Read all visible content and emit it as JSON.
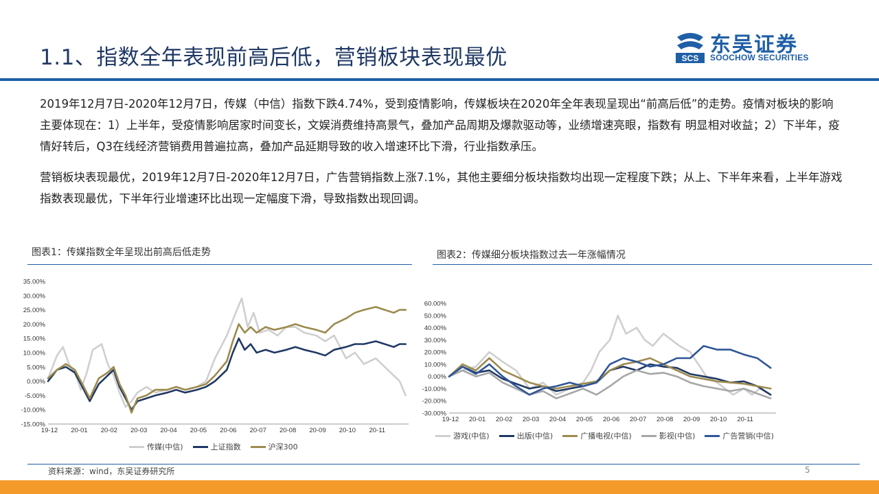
{
  "header": {
    "title": "1.1、指数全年表现前高后低，营销板块表现最优",
    "logo_cn": "东吴证券",
    "logo_en": "SOOCHOW SECURITIES",
    "logo_mark": "SCS",
    "logo_color": "#1f5fa6"
  },
  "paragraphs": [
    "2019年12月7日-2020年12月7日，传媒（中信）指数下跌4.74%，受到疫情影响，传媒板块在2020年全年表现呈现出“前高后低”的走势。疫情对板块的影响主要体现在：1）上半年，受疫情影响居家时间变长，文娱消费维持高景气，叠加产品周期及爆款驱动等，业绩增速亮眼，指数有 明显相对收益；2）下半年，疫情好转后，Q3在线经济营销费用普遍拉高，叠加产品延期导致的收入增速环比下滑，行业指数承压。",
    "营销板块表现最优，2019年12月7日-2020年12月7日，广告营销指数上涨7.1%，其他主要细分板块指数均出现一定程度下跌；从上、下半年来看，上半年游戏指数表现最优，下半年行业增速环比出现一定幅度下滑，导致指数出现回调。"
  ],
  "figures": {
    "fig1_title": "图表1：传媒指数全年呈现出前高后低走势",
    "fig2_title": "图表2：传媒细分板块指数过去一年涨幅情况"
  },
  "chart_data": [
    {
      "type": "line",
      "title": "",
      "xlabel": "",
      "ylabel": "",
      "x_ticks": [
        "19-12",
        "20-01",
        "20-02",
        "20-03",
        "20-04",
        "20-05",
        "20-06",
        "20-07",
        "20-08",
        "20-09",
        "20-10",
        "20-11"
      ],
      "y_ticks": [
        "35.00%",
        "30.00%",
        "25.00%",
        "20.00%",
        "15.00%",
        "10.00%",
        "5.00%",
        "0.00%",
        "-5.00%",
        "-10.00%",
        "-15.00%"
      ],
      "ylim": [
        -15,
        35
      ],
      "x_range": [
        0,
        12.1
      ],
      "grid": false,
      "legend_position": "bottom",
      "series": [
        {
          "name": "传媒(中信)",
          "color": "#cfcfcf",
          "x": [
            0,
            0.3,
            0.5,
            0.7,
            0.9,
            1.1,
            1.3,
            1.5,
            1.8,
            2.0,
            2.2,
            2.4,
            2.6,
            2.8,
            3.0,
            3.3,
            3.6,
            4.0,
            4.3,
            4.6,
            5.0,
            5.3,
            5.6,
            6.0,
            6.3,
            6.5,
            6.7,
            6.9,
            7.1,
            7.4,
            7.7,
            8.0,
            8.3,
            8.6,
            9.0,
            9.3,
            9.6,
            10.0,
            10.3,
            10.6,
            11.0,
            11.3,
            11.6,
            11.8,
            12.0
          ],
          "y": [
            1,
            9,
            12,
            6,
            3,
            -3,
            3,
            11,
            13,
            6,
            2,
            -4,
            -9,
            -7,
            -4,
            -2,
            -4,
            -3,
            -2,
            -3,
            -2,
            0,
            8,
            16,
            24,
            29,
            19,
            24,
            17,
            18,
            16,
            19,
            19,
            17,
            16,
            14,
            16,
            8,
            10,
            6,
            8,
            5,
            2,
            0,
            -5
          ]
        },
        {
          "name": "上证指数",
          "color": "#1f3864",
          "x": [
            0,
            0.3,
            0.6,
            0.9,
            1.2,
            1.4,
            1.7,
            2.0,
            2.2,
            2.4,
            2.6,
            2.8,
            3.0,
            3.3,
            3.6,
            4.0,
            4.3,
            4.6,
            5.0,
            5.3,
            5.6,
            6.0,
            6.2,
            6.4,
            6.6,
            6.8,
            7.0,
            7.3,
            7.6,
            8.0,
            8.3,
            8.6,
            9.0,
            9.3,
            9.6,
            10.0,
            10.3,
            10.6,
            11.0,
            11.3,
            11.6,
            11.8,
            12.0
          ],
          "y": [
            0,
            4,
            5,
            3,
            -3,
            -7,
            -1,
            2,
            4,
            -2,
            -6,
            -10,
            -7,
            -6,
            -5,
            -4,
            -3,
            -4,
            -3,
            -2,
            0,
            4,
            10,
            15,
            11,
            13,
            10,
            11,
            10,
            11,
            12,
            11,
            10,
            9,
            11,
            12,
            13,
            13,
            14,
            13,
            12,
            13,
            13
          ]
        },
        {
          "name": "沪深300",
          "color": "#9c8a4d",
          "x": [
            0,
            0.3,
            0.6,
            0.9,
            1.2,
            1.4,
            1.7,
            2.0,
            2.2,
            2.4,
            2.6,
            2.8,
            3.0,
            3.3,
            3.6,
            4.0,
            4.3,
            4.6,
            5.0,
            5.3,
            5.6,
            6.0,
            6.2,
            6.4,
            6.6,
            6.8,
            7.0,
            7.3,
            7.6,
            8.0,
            8.3,
            8.6,
            9.0,
            9.3,
            9.6,
            10.0,
            10.3,
            10.6,
            11.0,
            11.3,
            11.6,
            11.8,
            12.0
          ],
          "y": [
            1,
            4,
            6,
            4,
            -2,
            -6,
            1,
            3,
            5,
            -1,
            -5,
            -11,
            -6,
            -5,
            -3,
            -3,
            -2,
            -3,
            -2,
            -1,
            2,
            7,
            14,
            20,
            17,
            19,
            17,
            19,
            18,
            19,
            20,
            19,
            18,
            17,
            20,
            22,
            24,
            25,
            26,
            25,
            24,
            25,
            25
          ]
        }
      ]
    },
    {
      "type": "line",
      "title": "",
      "xlabel": "",
      "ylabel": "",
      "x_ticks": [
        "19-12",
        "20-01",
        "20-02",
        "20-03",
        "20-04",
        "20-05",
        "20-06",
        "20-07",
        "20-08",
        "20-09",
        "20-10",
        "20-11"
      ],
      "y_ticks": [
        "60.00%",
        "50.00%",
        "40.00%",
        "30.00%",
        "20.00%",
        "10.00%",
        "0.00%",
        "-10.00%",
        "-20.00%",
        "-30.00%"
      ],
      "ylim": [
        -30,
        60
      ],
      "x_range": [
        0,
        12.2
      ],
      "grid": false,
      "legend_position": "bottom",
      "series": [
        {
          "name": "游戏(中信)",
          "color": "#cfcfcf",
          "x": [
            0,
            0.5,
            1.0,
            1.5,
            2.0,
            2.5,
            3.0,
            3.5,
            4.0,
            4.5,
            5.0,
            5.3,
            5.6,
            6.0,
            6.3,
            6.6,
            7.0,
            7.3,
            7.6,
            8.0,
            8.3,
            8.6,
            9.0,
            9.3,
            9.6,
            10.0,
            10.3,
            10.6,
            11.0,
            11.3,
            11.6,
            12.0
          ],
          "y": [
            0,
            5,
            8,
            20,
            12,
            5,
            -10,
            -5,
            -15,
            -10,
            -5,
            5,
            20,
            30,
            50,
            35,
            40,
            30,
            25,
            35,
            30,
            25,
            20,
            10,
            0,
            -5,
            -10,
            -15,
            -10,
            -15,
            -10,
            -15
          ]
        },
        {
          "name": "出版(中信)",
          "color": "#1f3864",
          "x": [
            0,
            0.5,
            1.0,
            1.5,
            2.0,
            2.5,
            3.0,
            3.5,
            4.0,
            4.5,
            5.0,
            5.5,
            6.0,
            6.5,
            7.0,
            7.5,
            8.0,
            8.5,
            9.0,
            9.5,
            10.0,
            10.5,
            11.0,
            11.5,
            12.0
          ],
          "y": [
            0,
            8,
            3,
            5,
            -2,
            -6,
            -10,
            -8,
            -12,
            -10,
            -8,
            -5,
            5,
            8,
            5,
            10,
            8,
            7,
            2,
            0,
            -2,
            -5,
            -4,
            -8,
            -15
          ]
        },
        {
          "name": "广播电视(中信)",
          "color": "#9c8a4d",
          "x": [
            0,
            0.5,
            1.0,
            1.5,
            2.0,
            2.5,
            3.0,
            3.5,
            4.0,
            4.5,
            5.0,
            5.5,
            6.0,
            6.5,
            7.0,
            7.5,
            8.0,
            8.5,
            9.0,
            9.5,
            10.0,
            10.5,
            11.0,
            11.5,
            12.0
          ],
          "y": [
            0,
            10,
            5,
            15,
            5,
            0,
            -5,
            -8,
            -10,
            -8,
            -6,
            -4,
            5,
            10,
            12,
            15,
            10,
            5,
            0,
            -2,
            -4,
            -5,
            -6,
            -8,
            -10
          ]
        },
        {
          "name": "影视(中信)",
          "color": "#a6a6a6",
          "x": [
            0,
            0.5,
            1.0,
            1.5,
            2.0,
            2.5,
            3.0,
            3.5,
            4.0,
            4.5,
            5.0,
            5.5,
            6.0,
            6.5,
            7.0,
            7.5,
            8.0,
            8.5,
            9.0,
            9.5,
            10.0,
            10.5,
            11.0,
            11.5,
            12.0
          ],
          "y": [
            0,
            5,
            0,
            3,
            -5,
            -10,
            -15,
            -12,
            -18,
            -14,
            -10,
            -15,
            -8,
            0,
            5,
            2,
            3,
            0,
            -5,
            -8,
            -10,
            -12,
            -10,
            -14,
            -18
          ]
        },
        {
          "name": "广告营销(中信)",
          "color": "#2e5597",
          "x": [
            0,
            0.5,
            1.0,
            1.5,
            2.0,
            2.5,
            3.0,
            3.5,
            4.0,
            4.5,
            5.0,
            5.5,
            6.0,
            6.5,
            7.0,
            7.5,
            8.0,
            8.5,
            9.0,
            9.5,
            10.0,
            10.5,
            11.0,
            11.5,
            12.0
          ],
          "y": [
            0,
            8,
            2,
            10,
            0,
            -8,
            -15,
            -10,
            -8,
            -5,
            -8,
            -5,
            10,
            15,
            12,
            8,
            10,
            15,
            15,
            25,
            22,
            22,
            18,
            15,
            7
          ]
        }
      ]
    }
  ],
  "footer": {
    "source": "资料来源：wind，东吴证券研究所",
    "page": "5",
    "accent_color": "#f39a2b"
  }
}
